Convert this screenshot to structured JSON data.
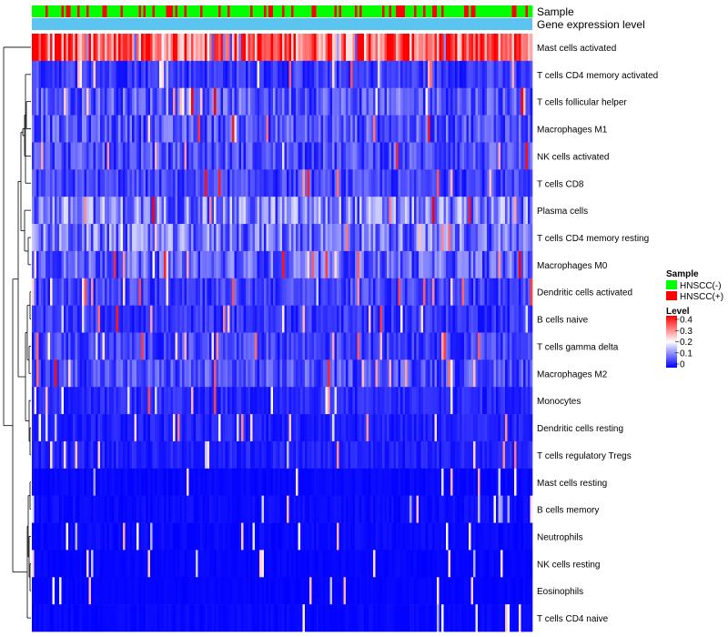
{
  "chart_data": {
    "type": "heatmap",
    "title": "",
    "annotation_tracks": [
      {
        "name": "Sample",
        "categories": [
          "HNSCC(-)",
          "HNSCC(+)"
        ],
        "colors": [
          "#00ff00",
          "#ff0000"
        ]
      },
      {
        "name": "Gene expression level",
        "color": "#5bc4f0"
      }
    ],
    "rows": [
      {
        "label": "Mast cells activated",
        "mean": 0.33
      },
      {
        "label": "T cells CD4 memory activated",
        "mean": 0.045
      },
      {
        "label": "T cells follicular helper",
        "mean": 0.07
      },
      {
        "label": "Macrophages M1",
        "mean": 0.065
      },
      {
        "label": "NK cells activated",
        "mean": 0.06
      },
      {
        "label": "T cells CD8",
        "mean": 0.05
      },
      {
        "label": "Plasma cells",
        "mean": 0.1
      },
      {
        "label": "T cells CD4 memory resting",
        "mean": 0.09
      },
      {
        "label": "Macrophages M0",
        "mean": 0.075
      },
      {
        "label": "Dendritic cells activated",
        "mean": 0.05
      },
      {
        "label": "B cells naive",
        "mean": 0.04
      },
      {
        "label": "T cells gamma delta",
        "mean": 0.05
      },
      {
        "label": "Macrophages M2",
        "mean": 0.06
      },
      {
        "label": "Monocytes",
        "mean": 0.03
      },
      {
        "label": "Dendritic cells resting",
        "mean": 0.025
      },
      {
        "label": "T cells regulatory  Tregs",
        "mean": 0.025
      },
      {
        "label": "Mast cells resting",
        "mean": 0.008
      },
      {
        "label": "B cells memory",
        "mean": 0.012
      },
      {
        "label": "Neutrophils",
        "mean": 0.01
      },
      {
        "label": "NK cells resting",
        "mean": 0.006
      },
      {
        "label": "Eosinophils",
        "mean": 0.005
      },
      {
        "label": "T cells CD4 naive",
        "mean": 0.008
      }
    ],
    "n_samples": 220,
    "color_scale": {
      "min": 0,
      "mid": 0.2,
      "max": 0.4,
      "low": "#0000ff",
      "middle": "#ffffff",
      "high": "#ff0000"
    },
    "legend": {
      "sample_title": "Sample",
      "sample_entries": [
        {
          "label": "HNSCC(-)",
          "color": "#00ff00"
        },
        {
          "label": "HNSCC(+)",
          "color": "#ff0000"
        }
      ],
      "level_title": "Level",
      "level_ticks": [
        "0.4",
        "0.3",
        "0.2",
        "0.1",
        "0"
      ],
      "placement": "right"
    },
    "dendrogram": "row clustering tree on the left"
  }
}
